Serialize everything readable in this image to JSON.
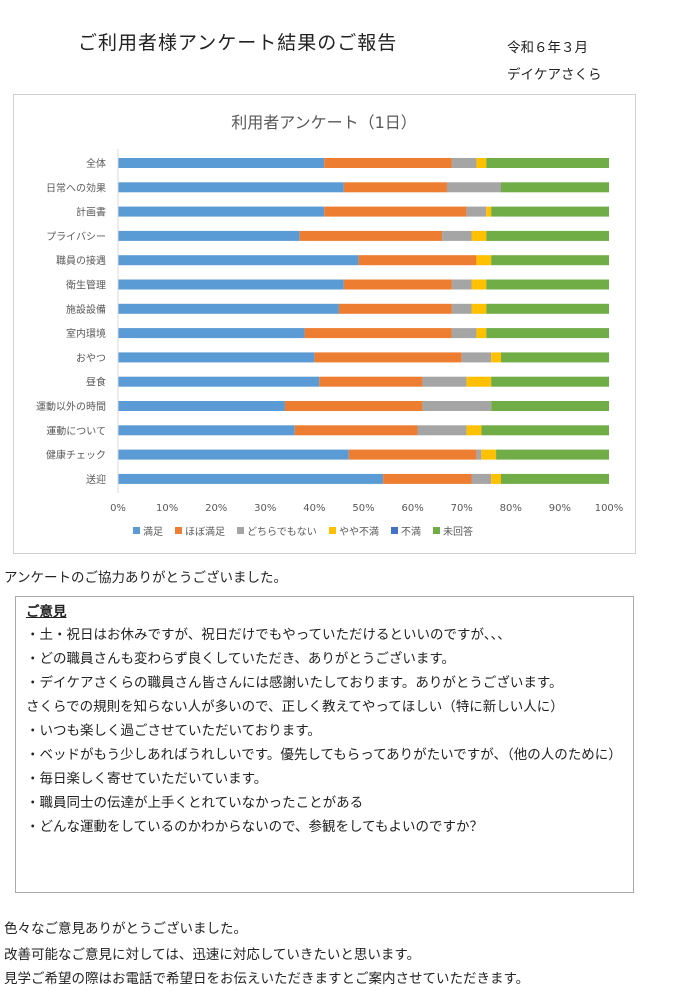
{
  "header": {
    "title": "ご利用者様アンケート結果のご報告",
    "date": "令和６年３月",
    "organization": "デイケアさくら"
  },
  "chart_data": {
    "type": "bar",
    "orientation": "horizontal-stacked-100",
    "title": "利用者アンケート（1日）",
    "categories": [
      "全体",
      "日常への効果",
      "計画書",
      "プライバシー",
      "職員の接遇",
      "衛生管理",
      "施設設備",
      "室内環境",
      "おやつ",
      "昼食",
      "運動以外の時間",
      "運動について",
      "健康チェック",
      "送迎"
    ],
    "x_ticks": [
      "0%",
      "10%",
      "20%",
      "30%",
      "40%",
      "50%",
      "60%",
      "70%",
      "80%",
      "90%",
      "100%"
    ],
    "xlim": [
      0,
      100
    ],
    "grid": false,
    "legend_position": "bottom",
    "series": [
      {
        "name": "満足",
        "color": "#5B9BD5",
        "values": [
          42,
          46,
          42,
          37,
          49,
          46,
          45,
          38,
          40,
          41,
          34,
          36,
          47,
          54
        ]
      },
      {
        "name": "ほぼ満足",
        "color": "#ED7D31",
        "values": [
          26,
          21,
          29,
          29,
          24,
          22,
          23,
          30,
          30,
          21,
          28,
          25,
          26,
          18
        ]
      },
      {
        "name": "どちらでもない",
        "color": "#A5A5A5",
        "values": [
          5,
          11,
          4,
          6,
          0,
          4,
          4,
          5,
          6,
          9,
          14,
          10,
          1,
          4
        ]
      },
      {
        "name": "やや不満",
        "color": "#FFC000",
        "values": [
          2,
          0,
          1,
          3,
          3,
          3,
          3,
          2,
          2,
          5,
          0,
          3,
          3,
          2
        ]
      },
      {
        "name": "不満",
        "color": "#4472C4",
        "values": [
          0,
          0,
          0,
          0,
          0,
          0,
          0,
          0,
          0,
          0,
          0,
          0,
          0,
          0
        ]
      },
      {
        "name": "未回答",
        "color": "#70AD47",
        "values": [
          25,
          22,
          24,
          25,
          24,
          25,
          25,
          25,
          22,
          24,
          24,
          26,
          23,
          22
        ]
      }
    ]
  },
  "thanks_text": "アンケートのご協力ありがとうございました。",
  "opinions": {
    "heading": "ご意見",
    "items": [
      "・土・祝日はお休みですが、祝日だけでもやっていただけるといいのですが、、、",
      "・どの職員さんも変わらず良くしていただき、ありがとうございます。",
      "・デイケアさくらの職員さん皆さんには感謝いたしております。ありがとうございます。",
      "さくらでの規則を知らない人が多いので、正しく教えてやってほしい（特に新しい人に）",
      "・いつも楽しく過ごさせていただいております。",
      "・ベッドがもう少しあればうれしいです。優先してもらってありがたいですが、（他の人のために）",
      "・毎日楽しく寄せていただいています。",
      "・職員同士の伝達が上手くとれていなかったことがある",
      "・どんな運動をしているのかわからないので、参観をしてもよいのですか？"
    ]
  },
  "closing": {
    "line1": "色々なご意見ありがとうございました。",
    "line2": "改善可能なご意見に対しては、迅速に対応していきたいと思います。",
    "line3": "見学ご希望の際はお電話で希望日をお伝えいただきますとご案内させていただきます。"
  }
}
